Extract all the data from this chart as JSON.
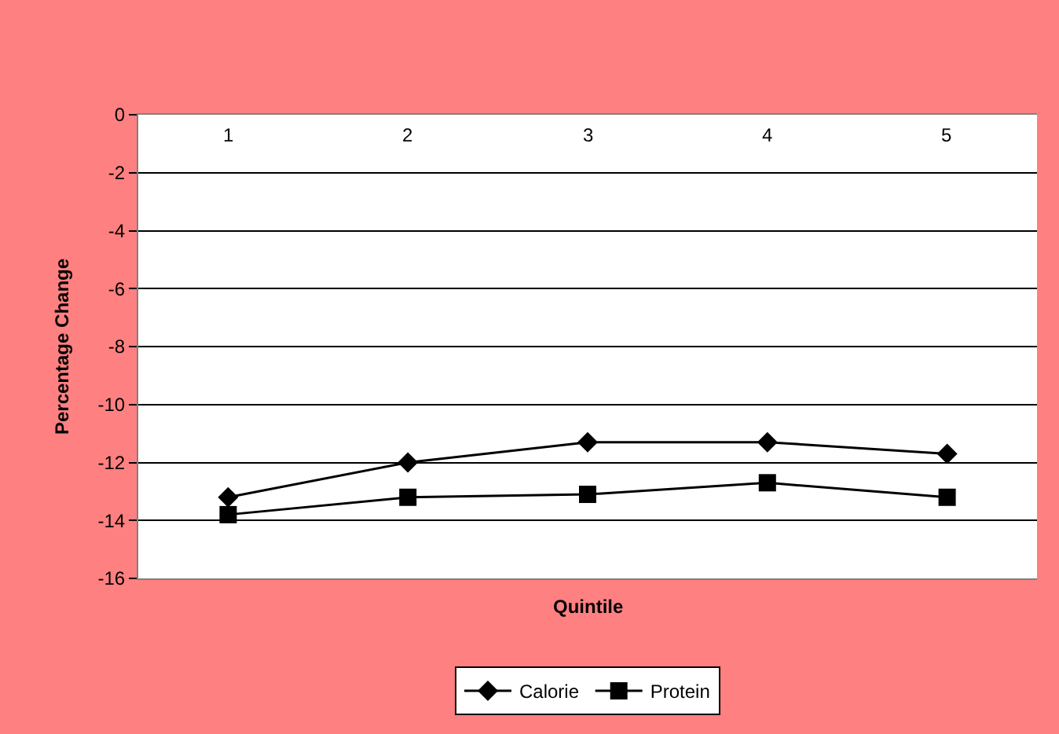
{
  "chart_data": {
    "type": "line",
    "xlabel": "Quintile",
    "ylabel": "Percentage Change",
    "categories": [
      "1",
      "2",
      "3",
      "4",
      "5"
    ],
    "series": [
      {
        "name": "Calorie",
        "color": "#000000",
        "marker": "diamond",
        "values": [
          -13.2,
          -12.0,
          -11.3,
          -11.3,
          -11.7
        ]
      },
      {
        "name": "Protein",
        "color": "#000000",
        "marker": "square",
        "values": [
          -13.8,
          -13.2,
          -13.1,
          -12.7,
          -13.2
        ]
      }
    ],
    "ylim": [
      -16,
      0
    ],
    "yticks": [
      -16,
      -14,
      -12,
      -10,
      -8,
      -6,
      -4,
      -2,
      0
    ],
    "grid": "y",
    "legend": "bottom",
    "line_style": "solid"
  }
}
